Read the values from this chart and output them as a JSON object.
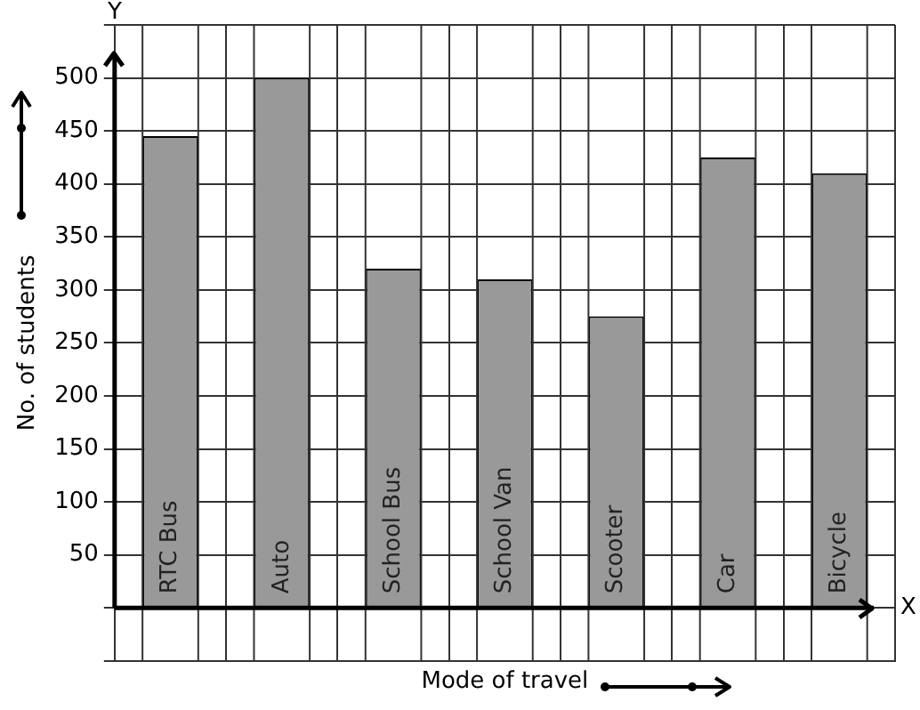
{
  "chart_data": {
    "type": "bar",
    "xlabel": "Mode of travel",
    "ylabel": "No. of students",
    "categories": [
      "RTC Bus",
      "Auto",
      "School Bus",
      "School Van",
      "Scooter",
      "Car",
      "Bicycle"
    ],
    "values": [
      445,
      500,
      320,
      310,
      275,
      425,
      410
    ],
    "color": "#999999",
    "ylim": [
      -50,
      550
    ],
    "yticks": [
      {
        "value": -50,
        "label": null
      },
      {
        "value": 0,
        "label": null
      },
      50,
      100,
      150,
      200,
      250,
      300,
      350,
      400,
      450,
      500,
      {
        "value": 550,
        "label": null
      }
    ],
    "grid": true,
    "annotations": [
      "Y",
      "X"
    ]
  }
}
